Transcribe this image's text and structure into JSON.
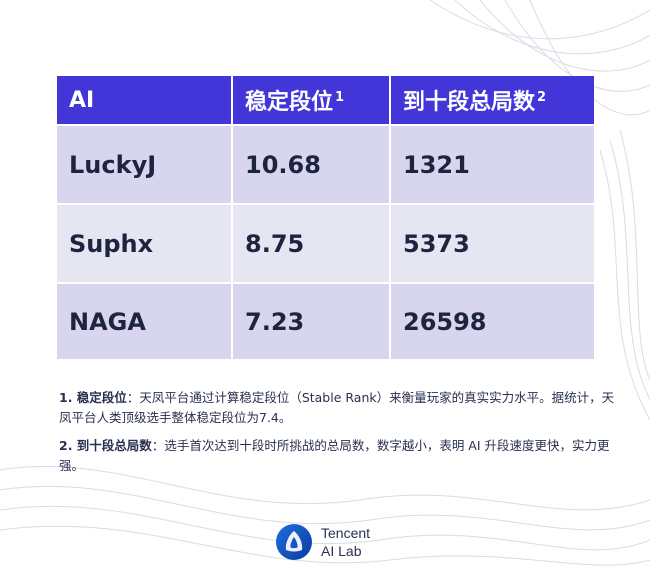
{
  "table": {
    "headers": [
      {
        "text": "AI",
        "sup": ""
      },
      {
        "text": "稳定段位",
        "sup": "1"
      },
      {
        "text": "到十段总局数",
        "sup": "2"
      }
    ],
    "rows": [
      {
        "ai": "LuckyJ",
        "rank": "10.68",
        "games": "1321"
      },
      {
        "ai": "Suphx",
        "rank": "8.75",
        "games": "5373"
      },
      {
        "ai": "NAGA",
        "rank": "7.23",
        "games": "26598"
      }
    ]
  },
  "notes": [
    {
      "label": "1. 稳定段位",
      "text": "：天凤平台通过计算稳定段位（Stable Rank）来衡量玩家的真实实力水平。据统计，天凤平台人类顶级选手整体稳定段位为7.4。"
    },
    {
      "label": "2. 到十段总局数",
      "text": "：选手首次达到十段时所挑战的总局数，数字越小，表明 AI 升段速度更快，实力更强。"
    }
  ],
  "logo": {
    "line1": "Tencent",
    "line2": "AI Lab",
    "icon": "tencent-ai-lab-logo-icon"
  },
  "colors": {
    "header_bg": "#4236d9",
    "row_dark": "#d7d6ee",
    "row_light": "#e6e6f3"
  }
}
